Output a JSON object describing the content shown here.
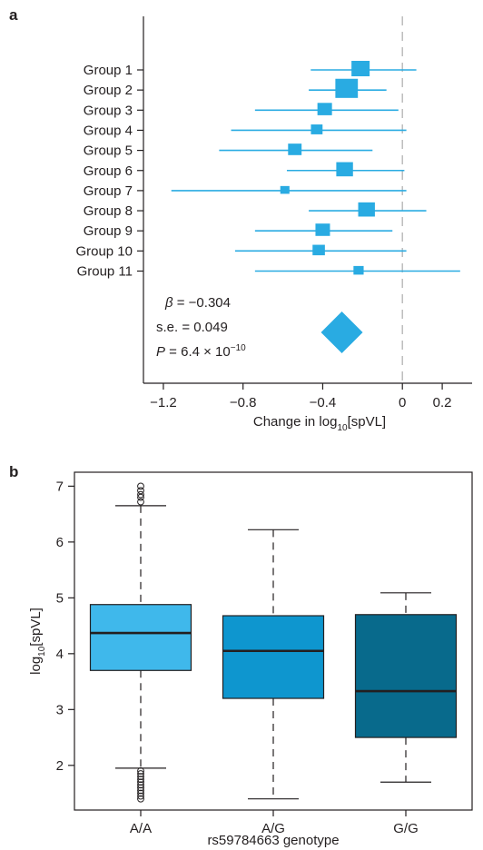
{
  "chart_data": [
    {
      "type": "forest",
      "panel_label": "a",
      "xlabel_prefix": "Change in log",
      "xlabel_sub": "10",
      "xlabel_suffix": "[spVL]",
      "xlim": [
        -1.3,
        0.35
      ],
      "xticks": [
        -1.2,
        -0.8,
        -0.4,
        0,
        0.2
      ],
      "xtick_labels": [
        "−1.2",
        "−0.8",
        "−0.4",
        "0",
        "0.2"
      ],
      "color": "#29abe2",
      "groups": [
        {
          "label": "Group 1",
          "estimate": -0.21,
          "lower": -0.46,
          "upper": 0.07,
          "weight": 1.0
        },
        {
          "label": "Group 2",
          "estimate": -0.28,
          "lower": -0.47,
          "upper": -0.08,
          "weight": 1.3
        },
        {
          "label": "Group 3",
          "estimate": -0.39,
          "lower": -0.74,
          "upper": -0.02,
          "weight": 0.75
        },
        {
          "label": "Group 4",
          "estimate": -0.43,
          "lower": -0.86,
          "upper": 0.02,
          "weight": 0.55
        },
        {
          "label": "Group 5",
          "estimate": -0.54,
          "lower": -0.92,
          "upper": -0.15,
          "weight": 0.68
        },
        {
          "label": "Group 6",
          "estimate": -0.29,
          "lower": -0.58,
          "upper": 0.01,
          "weight": 0.9
        },
        {
          "label": "Group 7",
          "estimate": -0.59,
          "lower": -1.16,
          "upper": 0.02,
          "weight": 0.38
        },
        {
          "label": "Group 8",
          "estimate": -0.18,
          "lower": -0.47,
          "upper": 0.12,
          "weight": 0.9
        },
        {
          "label": "Group 9",
          "estimate": -0.4,
          "lower": -0.74,
          "upper": -0.05,
          "weight": 0.75
        },
        {
          "label": "Group 10",
          "estimate": -0.42,
          "lower": -0.84,
          "upper": 0.02,
          "weight": 0.6
        },
        {
          "label": "Group 11",
          "estimate": -0.22,
          "lower": -0.74,
          "upper": 0.29,
          "weight": 0.45
        }
      ],
      "summary": {
        "estimate": -0.304,
        "beta_label": "β",
        "beta_value": " = −0.304",
        "se_text": "s.e. = 0.049",
        "p_label": "P",
        "p_value_prefix": " = 6.4 × 10",
        "p_value_exp": "−10"
      }
    },
    {
      "type": "boxplot",
      "panel_label": "b",
      "ylabel_prefix": "log",
      "ylabel_sub": "10",
      "ylabel_suffix": "[spVL]",
      "xlabel": "rs59784663 genotype",
      "ylim": [
        1.2,
        7.25
      ],
      "yticks": [
        2,
        3,
        4,
        5,
        6,
        7
      ],
      "categories": [
        "A/A",
        "A/G",
        "G/G"
      ],
      "boxes": [
        {
          "label": "A/A",
          "q1": 3.7,
          "median": 4.37,
          "q3": 4.88,
          "whisker_low": 1.95,
          "whisker_high": 6.65,
          "outliers": [
            1.4,
            1.45,
            1.5,
            1.55,
            1.6,
            1.65,
            1.7,
            1.75,
            1.8,
            1.85,
            1.9,
            6.72,
            6.8,
            6.85,
            6.92,
            7.0
          ],
          "color": "#3fb8eb"
        },
        {
          "label": "A/G",
          "q1": 3.2,
          "median": 4.05,
          "q3": 4.68,
          "whisker_low": 1.4,
          "whisker_high": 6.22,
          "outliers": [],
          "color": "#0e96cf"
        },
        {
          "label": "G/G",
          "q1": 2.5,
          "median": 3.33,
          "q3": 4.7,
          "whisker_low": 1.7,
          "whisker_high": 5.09,
          "outliers": [],
          "color": "#086a8c"
        }
      ]
    }
  ]
}
